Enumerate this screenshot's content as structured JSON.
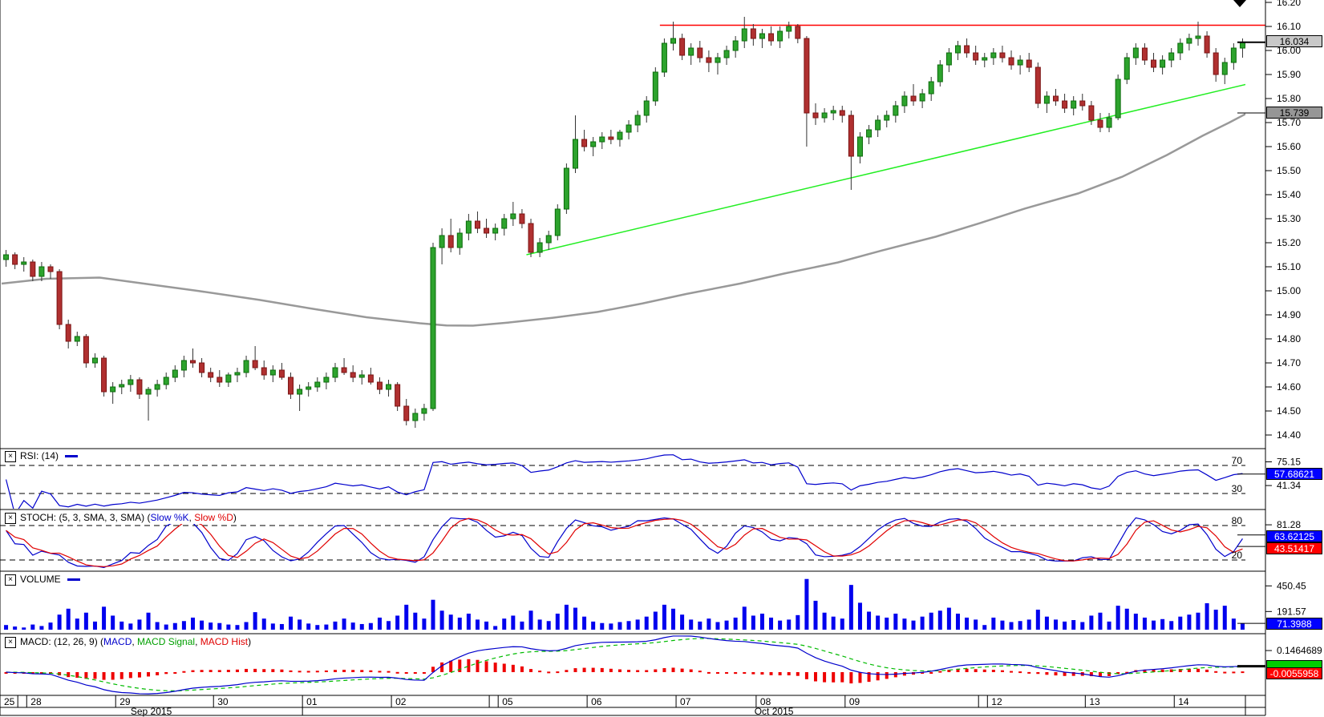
{
  "colors": {
    "up_fill": "#2da32d",
    "up_border": "#0b6b0b",
    "down_fill": "#b03030",
    "down_border": "#7a1414",
    "wick": "#333333",
    "ma_line": "#999999",
    "trend_line": "#22ee22",
    "resistance_line": "#ff0000",
    "rsi_line": "#0000cc",
    "stoch_k": "#0000cc",
    "stoch_d": "#e00000",
    "volume_bar": "#0000ee",
    "macd_line": "#0000cc",
    "macd_signal": "#00bb00",
    "macd_hist": "#ee0000",
    "box_blue": "#0000ff",
    "box_red": "#ff0000",
    "box_green": "#00cc00",
    "box_gray_light": "#c8c8c8",
    "box_gray_dark": "#969696"
  },
  "icons": {
    "checkbox_glyph": "×",
    "marker": "down-triangle"
  },
  "panels": {
    "rsi": {
      "label": "RSI: (14)",
      "levels": [
        "70",
        "30"
      ],
      "axis_ticks": [
        "75.15",
        "41.34"
      ],
      "current": "57.68621"
    },
    "stoch": {
      "label_prefix": "STOCH: (5, 3, SMA, 3, SMA) (",
      "k_label": "Slow %K",
      "separator": ", ",
      "d_label": "Slow %D",
      "suffix": ")",
      "levels": [
        "80",
        "20"
      ],
      "axis_ticks": [
        "81.28"
      ],
      "current_k": "63.62125",
      "current_d": "43.51417"
    },
    "volume": {
      "label": "VOLUME",
      "axis_ticks": [
        "450.45",
        "191.57"
      ],
      "current": "71.3988"
    },
    "macd": {
      "label_prefix": "MACD: (12, 26, 9) (",
      "macd_label": "MACD",
      "separator": ", ",
      "signal_label": "MACD Signal",
      "hist_label": "MACD Hist",
      "suffix": ")",
      "axis_ticks": [
        "0.1464689"
      ],
      "current_hist": "-0.0055958"
    }
  },
  "price_axis": {
    "ticks": [
      "16.20",
      "16.10",
      "16.00",
      "15.90",
      "15.80",
      "15.70",
      "15.60",
      "15.50",
      "15.40",
      "15.30",
      "15.20",
      "15.10",
      "15.00",
      "14.90",
      "14.80",
      "14.70",
      "14.60",
      "14.50",
      "14.40"
    ],
    "last_price_box": "16.034",
    "ma_price_box": "15.739"
  },
  "chart_data": {
    "type": "candlestick-multi-panel",
    "title": "",
    "panels_order": [
      "price",
      "RSI(14)",
      "STOCH(5,3,SMA,3,SMA)",
      "VOLUME",
      "MACD(12,26,9)"
    ],
    "price_axis_range": [
      14.343,
      16.21
    ],
    "overlays": {
      "resistance_price": 16.105,
      "resistance_from_index": 74,
      "trendline": {
        "from": [
          59,
          15.15
        ],
        "to": [
          140,
          15.86
        ]
      },
      "ma_points": [
        [
          0,
          15.03
        ],
        [
          5,
          15.05
        ],
        [
          11,
          15.055
        ],
        [
          16,
          15.03
        ],
        [
          22,
          15.0
        ],
        [
          29,
          14.962
        ],
        [
          35,
          14.925
        ],
        [
          41,
          14.89
        ],
        [
          47,
          14.865
        ],
        [
          50,
          14.856
        ],
        [
          53,
          14.855
        ],
        [
          57,
          14.868
        ],
        [
          62,
          14.888
        ],
        [
          67,
          14.912
        ],
        [
          72,
          14.947
        ],
        [
          77,
          14.987
        ],
        [
          83,
          15.03
        ],
        [
          88,
          15.072
        ],
        [
          94,
          15.118
        ],
        [
          99,
          15.168
        ],
        [
          105,
          15.225
        ],
        [
          110,
          15.282
        ],
        [
          115,
          15.342
        ],
        [
          121,
          15.405
        ],
        [
          126,
          15.475
        ],
        [
          131,
          15.565
        ],
        [
          135,
          15.645
        ],
        [
          138,
          15.7
        ],
        [
          140,
          15.739
        ]
      ]
    },
    "days": [
      {
        "label": "25",
        "count": 2
      },
      {
        "label": "",
        "count": 1
      },
      {
        "label": "28",
        "count": 10
      },
      {
        "label": "29",
        "count": 11
      },
      {
        "label": "30",
        "count": 10
      },
      {
        "label": "01",
        "count": 10
      },
      {
        "label": "02",
        "count": 11
      },
      {
        "label": "",
        "count": 1
      },
      {
        "label": "05",
        "count": 10
      },
      {
        "label": "06",
        "count": 10
      },
      {
        "label": "07",
        "count": 9
      },
      {
        "label": "08",
        "count": 10
      },
      {
        "label": "09",
        "count": 15
      },
      {
        "label": "",
        "count": 1
      },
      {
        "label": "12",
        "count": 11
      },
      {
        "label": "13",
        "count": 10
      },
      {
        "label": "14",
        "count": 8
      }
    ],
    "months": [
      {
        "label": "Sep 2015",
        "cells": 5
      },
      {
        "label": "Oct 2015",
        "cells": 12
      }
    ],
    "candles": [
      [
        15.13,
        15.17,
        15.1,
        15.15
      ],
      [
        15.15,
        15.16,
        15.09,
        15.11
      ],
      [
        15.11,
        15.14,
        15.08,
        15.12
      ],
      [
        15.12,
        15.13,
        15.04,
        15.06
      ],
      [
        15.06,
        15.12,
        15.04,
        15.1
      ],
      [
        15.1,
        15.11,
        15.05,
        15.08
      ],
      [
        15.08,
        15.09,
        14.84,
        14.86
      ],
      [
        14.86,
        14.88,
        14.76,
        14.79
      ],
      [
        14.79,
        14.83,
        14.77,
        14.81
      ],
      [
        14.81,
        14.82,
        14.68,
        14.7
      ],
      [
        14.7,
        14.74,
        14.68,
        14.72
      ],
      [
        14.72,
        14.73,
        14.56,
        14.58
      ],
      [
        14.58,
        14.62,
        14.53,
        14.6
      ],
      [
        14.6,
        14.63,
        14.57,
        14.61
      ],
      [
        14.61,
        14.65,
        14.58,
        14.63
      ],
      [
        14.63,
        14.64,
        14.55,
        14.57
      ],
      [
        14.57,
        14.6,
        14.46,
        14.59
      ],
      [
        14.59,
        14.63,
        14.56,
        14.61
      ],
      [
        14.61,
        14.66,
        14.59,
        14.64
      ],
      [
        14.64,
        14.69,
        14.62,
        14.67
      ],
      [
        14.67,
        14.73,
        14.64,
        14.71
      ],
      [
        14.71,
        14.76,
        14.68,
        14.7
      ],
      [
        14.7,
        14.72,
        14.64,
        14.66
      ],
      [
        14.66,
        14.68,
        14.62,
        14.64
      ],
      [
        14.64,
        14.67,
        14.6,
        14.62
      ],
      [
        14.62,
        14.66,
        14.6,
        14.65
      ],
      [
        14.65,
        14.68,
        14.62,
        14.66
      ],
      [
        14.66,
        14.73,
        14.64,
        14.71
      ],
      [
        14.71,
        14.77,
        14.67,
        14.68
      ],
      [
        14.68,
        14.71,
        14.63,
        14.65
      ],
      [
        14.65,
        14.69,
        14.62,
        14.67
      ],
      [
        14.67,
        14.7,
        14.63,
        14.64
      ],
      [
        14.64,
        14.66,
        14.55,
        14.57
      ],
      [
        14.57,
        14.61,
        14.5,
        14.59
      ],
      [
        14.59,
        14.62,
        14.56,
        14.6
      ],
      [
        14.6,
        14.64,
        14.58,
        14.62
      ],
      [
        14.62,
        14.66,
        14.59,
        14.64
      ],
      [
        14.64,
        14.7,
        14.62,
        14.68
      ],
      [
        14.68,
        14.72,
        14.65,
        14.66
      ],
      [
        14.66,
        14.69,
        14.62,
        14.64
      ],
      [
        14.64,
        14.67,
        14.61,
        14.65
      ],
      [
        14.65,
        14.68,
        14.61,
        14.62
      ],
      [
        14.62,
        14.64,
        14.57,
        14.59
      ],
      [
        14.59,
        14.63,
        14.56,
        14.61
      ],
      [
        14.61,
        14.62,
        14.5,
        14.52
      ],
      [
        14.52,
        14.55,
        14.44,
        14.46
      ],
      [
        14.46,
        14.51,
        14.43,
        14.49
      ],
      [
        14.49,
        14.53,
        14.46,
        14.51
      ],
      [
        14.51,
        15.2,
        14.5,
        15.18
      ],
      [
        15.18,
        15.26,
        15.11,
        15.23
      ],
      [
        15.23,
        15.3,
        15.16,
        15.18
      ],
      [
        15.18,
        15.26,
        15.15,
        15.24
      ],
      [
        15.24,
        15.32,
        15.21,
        15.29
      ],
      [
        15.29,
        15.33,
        15.24,
        15.26
      ],
      [
        15.26,
        15.3,
        15.22,
        15.24
      ],
      [
        15.24,
        15.28,
        15.21,
        15.26
      ],
      [
        15.26,
        15.32,
        15.23,
        15.3
      ],
      [
        15.3,
        15.37,
        15.27,
        15.32
      ],
      [
        15.32,
        15.34,
        15.26,
        15.28
      ],
      [
        15.28,
        15.3,
        15.14,
        15.16
      ],
      [
        15.16,
        15.22,
        15.14,
        15.2
      ],
      [
        15.2,
        15.25,
        15.17,
        15.23
      ],
      [
        15.23,
        15.36,
        15.21,
        15.34
      ],
      [
        15.34,
        15.53,
        15.32,
        15.51
      ],
      [
        15.51,
        15.73,
        15.49,
        15.63
      ],
      [
        15.63,
        15.67,
        15.58,
        15.6
      ],
      [
        15.6,
        15.64,
        15.56,
        15.62
      ],
      [
        15.62,
        15.66,
        15.59,
        15.64
      ],
      [
        15.64,
        15.67,
        15.61,
        15.63
      ],
      [
        15.63,
        15.67,
        15.6,
        15.66
      ],
      [
        15.66,
        15.71,
        15.63,
        15.69
      ],
      [
        15.69,
        15.75,
        15.66,
        15.73
      ],
      [
        15.73,
        15.81,
        15.7,
        15.79
      ],
      [
        15.79,
        15.93,
        15.77,
        15.91
      ],
      [
        15.91,
        16.05,
        15.89,
        16.03
      ],
      [
        16.03,
        16.12,
        16.0,
        16.05
      ],
      [
        16.05,
        16.07,
        15.96,
        15.98
      ],
      [
        15.98,
        16.03,
        15.94,
        16.01
      ],
      [
        16.01,
        16.04,
        15.95,
        15.97
      ],
      [
        15.97,
        16.0,
        15.91,
        15.95
      ],
      [
        15.95,
        15.99,
        15.9,
        15.97
      ],
      [
        15.97,
        16.02,
        15.94,
        16.0
      ],
      [
        16.0,
        16.06,
        15.97,
        16.04
      ],
      [
        16.04,
        16.14,
        16.01,
        16.09
      ],
      [
        16.09,
        16.11,
        16.02,
        16.05
      ],
      [
        16.05,
        16.09,
        16.01,
        16.07
      ],
      [
        16.07,
        16.1,
        16.02,
        16.04
      ],
      [
        16.04,
        16.1,
        16.01,
        16.08
      ],
      [
        16.08,
        16.12,
        16.05,
        16.1
      ],
      [
        16.1,
        16.11,
        16.03,
        16.05
      ],
      [
        16.05,
        16.06,
        15.6,
        15.74
      ],
      [
        15.74,
        15.78,
        15.69,
        15.72
      ],
      [
        15.72,
        15.76,
        15.7,
        15.74
      ],
      [
        15.74,
        15.77,
        15.71,
        15.75
      ],
      [
        15.75,
        15.77,
        15.7,
        15.73
      ],
      [
        15.73,
        15.75,
        15.42,
        15.56
      ],
      [
        15.56,
        15.66,
        15.53,
        15.64
      ],
      [
        15.64,
        15.69,
        15.61,
        15.67
      ],
      [
        15.67,
        15.73,
        15.64,
        15.71
      ],
      [
        15.71,
        15.75,
        15.68,
        15.73
      ],
      [
        15.73,
        15.79,
        15.7,
        15.77
      ],
      [
        15.77,
        15.83,
        15.74,
        15.81
      ],
      [
        15.81,
        15.86,
        15.77,
        15.79
      ],
      [
        15.79,
        15.84,
        15.76,
        15.82
      ],
      [
        15.82,
        15.89,
        15.79,
        15.87
      ],
      [
        15.87,
        15.96,
        15.85,
        15.94
      ],
      [
        15.94,
        16.01,
        15.91,
        15.99
      ],
      [
        15.99,
        16.04,
        15.96,
        16.02
      ],
      [
        16.02,
        16.05,
        15.97,
        15.99
      ],
      [
        15.99,
        16.02,
        15.94,
        15.96
      ],
      [
        15.96,
        15.99,
        15.93,
        15.97
      ],
      [
        15.97,
        16.01,
        15.94,
        15.99
      ],
      [
        15.99,
        16.02,
        15.95,
        15.97
      ],
      [
        15.97,
        16.0,
        15.92,
        15.94
      ],
      [
        15.94,
        15.98,
        15.9,
        15.96
      ],
      [
        15.96,
        15.99,
        15.91,
        15.93
      ],
      [
        15.93,
        15.95,
        15.76,
        15.78
      ],
      [
        15.78,
        15.83,
        15.74,
        15.81
      ],
      [
        15.81,
        15.84,
        15.77,
        15.79
      ],
      [
        15.79,
        15.82,
        15.74,
        15.76
      ],
      [
        15.76,
        15.81,
        15.73,
        15.79
      ],
      [
        15.79,
        15.82,
        15.75,
        15.77
      ],
      [
        15.77,
        15.79,
        15.69,
        15.71
      ],
      [
        15.71,
        15.74,
        15.66,
        15.68
      ],
      [
        15.68,
        15.74,
        15.66,
        15.72
      ],
      [
        15.72,
        15.9,
        15.71,
        15.88
      ],
      [
        15.88,
        15.99,
        15.86,
        15.97
      ],
      [
        15.97,
        16.03,
        15.94,
        16.01
      ],
      [
        16.01,
        16.03,
        15.94,
        15.96
      ],
      [
        15.96,
        15.99,
        15.91,
        15.93
      ],
      [
        15.93,
        15.98,
        15.9,
        15.96
      ],
      [
        15.96,
        16.01,
        15.93,
        15.99
      ],
      [
        15.99,
        16.05,
        15.96,
        16.03
      ],
      [
        16.03,
        16.07,
        16.0,
        16.05
      ],
      [
        16.05,
        16.12,
        16.02,
        16.06
      ],
      [
        16.06,
        16.08,
        15.97,
        15.99
      ],
      [
        15.99,
        16.01,
        15.87,
        15.9
      ],
      [
        15.9,
        15.97,
        15.86,
        15.95
      ],
      [
        15.95,
        16.03,
        15.92,
        16.01
      ],
      [
        16.01,
        16.05,
        15.97,
        16.034
      ]
    ],
    "volume": [
      55,
      40,
      30,
      60,
      45,
      80,
      160,
      220,
      120,
      180,
      90,
      240,
      150,
      90,
      70,
      110,
      180,
      85,
      60,
      75,
      95,
      130,
      100,
      80,
      75,
      60,
      55,
      85,
      185,
      120,
      70,
      65,
      140,
      110,
      70,
      55,
      60,
      90,
      120,
      80,
      65,
      75,
      130,
      95,
      150,
      260,
      180,
      120,
      310,
      200,
      160,
      130,
      170,
      110,
      90,
      45,
      120,
      150,
      90,
      200,
      110,
      95,
      170,
      260,
      230,
      140,
      90,
      75,
      70,
      85,
      95,
      110,
      140,
      190,
      260,
      220,
      160,
      110,
      90,
      120,
      85,
      100,
      130,
      240,
      150,
      170,
      130,
      100,
      110,
      155,
      520,
      300,
      180,
      140,
      120,
      460,
      280,
      190,
      150,
      130,
      170,
      120,
      100,
      140,
      180,
      200,
      230,
      170,
      130,
      110,
      55,
      130,
      100,
      85,
      95,
      110,
      210,
      140,
      110,
      90,
      105,
      85,
      150,
      180,
      90,
      250,
      220,
      170,
      130,
      100,
      115,
      95,
      140,
      160,
      180,
      275,
      210,
      250,
      120,
      71.3988
    ]
  }
}
